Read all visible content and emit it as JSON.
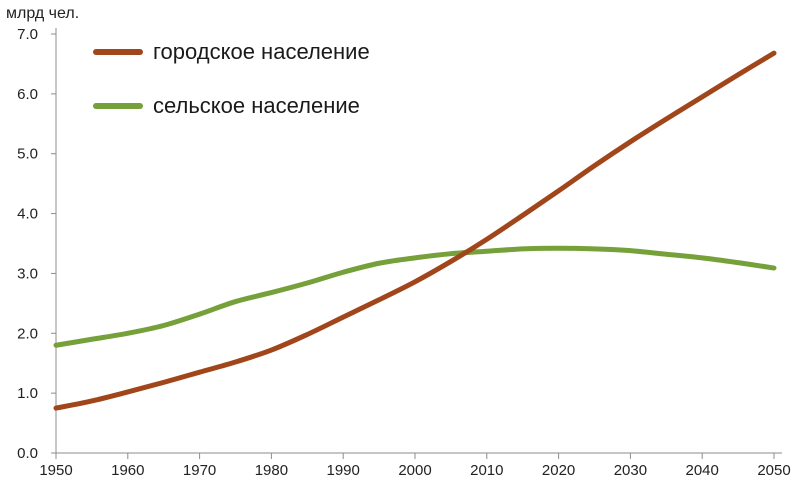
{
  "chart_data": {
    "type": "line",
    "title": "",
    "xlabel": "",
    "ylabel": "млрд чел.",
    "xlim": [
      1950,
      2050
    ],
    "ylim": [
      0,
      7
    ],
    "x_ticks": [
      1950,
      1960,
      1970,
      1980,
      1990,
      2000,
      2010,
      2020,
      2030,
      2040,
      2050
    ],
    "y_ticks": [
      "0.0",
      "1.0",
      "2.0",
      "3.0",
      "4.0",
      "5.0",
      "6.0",
      "7.0"
    ],
    "grid": false,
    "legend_position": "top-left",
    "x": [
      1950,
      1955,
      1960,
      1965,
      1970,
      1975,
      1980,
      1985,
      1990,
      1995,
      2000,
      2005,
      2010,
      2015,
      2020,
      2025,
      2030,
      2035,
      2040,
      2045,
      2050
    ],
    "series": [
      {
        "name": "городское население",
        "color": "#a0461a",
        "values": [
          0.75,
          0.87,
          1.02,
          1.18,
          1.35,
          1.52,
          1.72,
          1.98,
          2.27,
          2.56,
          2.86,
          3.2,
          3.57,
          3.97,
          4.38,
          4.8,
          5.2,
          5.58,
          5.95,
          6.32,
          6.68
        ]
      },
      {
        "name": "сельское население",
        "color": "#76a03a",
        "values": [
          1.8,
          1.9,
          2.0,
          2.13,
          2.32,
          2.53,
          2.68,
          2.84,
          3.02,
          3.17,
          3.26,
          3.33,
          3.37,
          3.41,
          3.42,
          3.41,
          3.38,
          3.32,
          3.26,
          3.18,
          3.09
        ]
      }
    ]
  }
}
